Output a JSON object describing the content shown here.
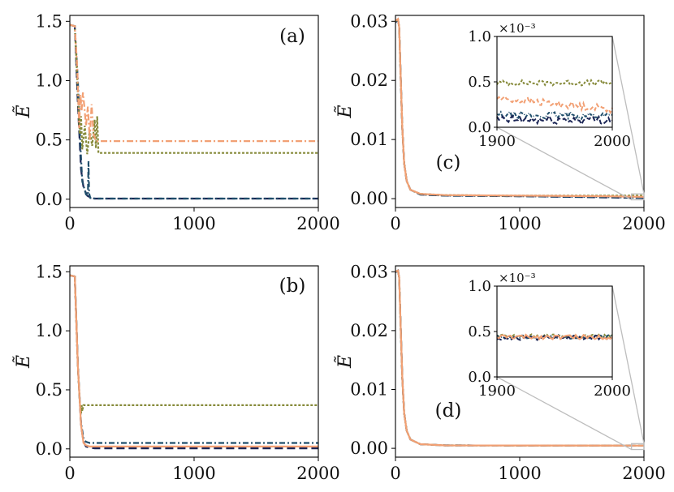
{
  "colors": {
    "navy": "#1b2555",
    "teal": "#1f4e6b",
    "olive": "#868a3a",
    "salmon": "#f2a074",
    "zoom": "#bdbdbd"
  },
  "chart_data": [
    {
      "id": "a",
      "type": "line",
      "label": "(a)",
      "ylabel": "Ẽ",
      "xlim": [
        0,
        2000
      ],
      "ylim": [
        -0.07,
        1.55
      ],
      "xticks": [
        0,
        1000,
        2000
      ],
      "xtick_labels": [
        "0",
        "1000",
        "2000"
      ],
      "yticks": [
        0,
        0.5,
        1.0,
        1.5
      ],
      "ytick_labels": [
        "0.0",
        "0.5",
        "1.0",
        "1.5"
      ],
      "series": [
        {
          "name": "navy-dashed",
          "color": "navy",
          "dash": "10,5",
          "x": [
            0,
            40,
            65,
            90,
            110,
            140,
            170,
            200,
            2000
          ],
          "y": [
            1.47,
            1.46,
            0.8,
            0.25,
            0.1,
            0.03,
            0.01,
            0.005,
            0.005
          ]
        },
        {
          "name": "teal-dashdot",
          "color": "teal",
          "dash": "7,3,2,3",
          "x": [
            0,
            40,
            65,
            85,
            100,
            130,
            145,
            150,
            155,
            165,
            200,
            300,
            2000
          ],
          "y": [
            1.47,
            1.46,
            1.0,
            0.45,
            0.15,
            0.04,
            0.03,
            0.32,
            0.05,
            0.01,
            0.005,
            0.005,
            0.005
          ]
        },
        {
          "name": "olive-dotted",
          "color": "olive",
          "dash": "3,2",
          "x": [
            0,
            40,
            60,
            80,
            90,
            100,
            120,
            140,
            160,
            180,
            200,
            210,
            220,
            230,
            250,
            2000
          ],
          "y": [
            1.47,
            1.46,
            1.0,
            0.55,
            0.7,
            0.42,
            0.62,
            0.38,
            0.58,
            0.45,
            0.67,
            0.43,
            0.7,
            0.39,
            0.39,
            0.39
          ]
        },
        {
          "name": "salmon-dashdot",
          "color": "salmon",
          "dash": "8,3,2,3",
          "x": [
            0,
            40,
            60,
            75,
            85,
            95,
            105,
            115,
            130,
            145,
            160,
            175,
            190,
            210,
            2000
          ],
          "y": [
            1.47,
            1.46,
            1.1,
            0.6,
            0.88,
            0.75,
            0.9,
            0.8,
            0.62,
            0.78,
            0.5,
            0.8,
            0.55,
            0.49,
            0.49
          ]
        }
      ]
    },
    {
      "id": "c",
      "type": "line",
      "label": "(c)",
      "ylabel": "Ẽ",
      "xlim": [
        0,
        2000
      ],
      "ylim": [
        -0.0015,
        0.031
      ],
      "xticks": [
        0,
        1000,
        2000
      ],
      "xtick_labels": [
        "0",
        "1000",
        "2000"
      ],
      "yticks": [
        0,
        0.01,
        0.02,
        0.03
      ],
      "ytick_labels": [
        "0.00",
        "0.01",
        "0.02",
        "0.03"
      ],
      "series": [
        {
          "name": "navy-dashed",
          "color": "navy",
          "dash": "10,5",
          "x": [
            0,
            20,
            30,
            40,
            55,
            70,
            90,
            120,
            200,
            400,
            1000,
            1700,
            2000
          ],
          "y": [
            0.0298,
            0.0303,
            0.029,
            0.022,
            0.012,
            0.006,
            0.003,
            0.0015,
            0.0007,
            0.0005,
            0.0004,
            0.0002,
            0.0001
          ]
        },
        {
          "name": "teal-dashdot",
          "color": "teal",
          "dash": "7,3,2,3",
          "x": [
            0,
            20,
            30,
            40,
            55,
            70,
            90,
            120,
            200,
            400,
            1000,
            1700,
            2000
          ],
          "y": [
            0.0299,
            0.0303,
            0.029,
            0.022,
            0.012,
            0.006,
            0.003,
            0.0015,
            0.0007,
            0.0005,
            0.0004,
            0.00025,
            0.00015
          ]
        },
        {
          "name": "olive-dotted",
          "color": "olive",
          "dash": "3,2",
          "x": [
            0,
            20,
            30,
            40,
            55,
            70,
            90,
            120,
            200,
            400,
            1000,
            1700,
            2000
          ],
          "y": [
            0.03,
            0.0304,
            0.029,
            0.022,
            0.012,
            0.006,
            0.003,
            0.0015,
            0.0008,
            0.0006,
            0.0005,
            0.0005,
            0.0005
          ]
        },
        {
          "name": "salmon-solid",
          "color": "salmon",
          "dash": "",
          "x": [
            0,
            20,
            30,
            40,
            55,
            70,
            90,
            120,
            200,
            400,
            1000,
            1700,
            2000
          ],
          "y": [
            0.0301,
            0.0304,
            0.029,
            0.022,
            0.012,
            0.006,
            0.003,
            0.0015,
            0.0008,
            0.0006,
            0.0005,
            0.0004,
            0.0003
          ]
        }
      ],
      "inset": {
        "xlim": [
          1900,
          2000
        ],
        "ylim": [
          0,
          1.0
        ],
        "xticks": [
          1900,
          2000
        ],
        "xtick_labels": [
          "1900",
          "2000"
        ],
        "yticks": [
          0,
          0.5,
          1.0
        ],
        "ytick_labels": [
          "0.0",
          "0.5",
          "1.0"
        ],
        "scale_label": "×10⁻³",
        "series": [
          {
            "name": "olive-dotted",
            "color": "olive",
            "dash": "3,2",
            "level": 0.49,
            "amp": 0.03
          },
          {
            "name": "salmon-solid",
            "color": "salmon",
            "dash": "5,3",
            "level": 0.32,
            "amp": 0.04,
            "slope": -0.12
          },
          {
            "name": "teal-dashdot",
            "color": "teal",
            "dash": "4,2,1,2",
            "level": 0.13,
            "amp": 0.04
          },
          {
            "name": "navy-dashed",
            "color": "navy",
            "dash": "6,3",
            "level": 0.08,
            "amp": 0.05
          }
        ]
      }
    },
    {
      "id": "b",
      "type": "line",
      "label": "(b)",
      "ylabel": "Ẽ",
      "xlim": [
        0,
        2000
      ],
      "ylim": [
        -0.07,
        1.55
      ],
      "xticks": [
        0,
        1000,
        2000
      ],
      "xtick_labels": [
        "0",
        "1000",
        "2000"
      ],
      "yticks": [
        0,
        0.5,
        1.0,
        1.5
      ],
      "ytick_labels": [
        "0.0",
        "0.5",
        "1.0",
        "1.5"
      ],
      "series": [
        {
          "name": "navy-dashed",
          "color": "navy",
          "dash": "10,5",
          "x": [
            0,
            40,
            65,
            90,
            110,
            130,
            160,
            200,
            2000
          ],
          "y": [
            1.47,
            1.46,
            0.7,
            0.2,
            0.06,
            0.02,
            0.01,
            0.005,
            0.005
          ]
        },
        {
          "name": "teal-dashdot",
          "color": "teal",
          "dash": "7,3,2,3",
          "x": [
            0,
            40,
            65,
            90,
            110,
            130,
            160,
            200,
            2000
          ],
          "y": [
            1.47,
            1.46,
            0.7,
            0.22,
            0.09,
            0.06,
            0.05,
            0.05,
            0.05
          ]
        },
        {
          "name": "olive-dotted",
          "color": "olive",
          "dash": "3,2",
          "x": [
            0,
            40,
            65,
            80,
            90,
            95,
            100,
            110,
            2000
          ],
          "y": [
            1.47,
            1.46,
            0.7,
            0.4,
            0.3,
            0.37,
            0.32,
            0.37,
            0.37
          ]
        },
        {
          "name": "salmon-solid",
          "color": "salmon",
          "dash": "",
          "x": [
            0,
            40,
            65,
            90,
            110,
            130,
            160,
            200,
            2000
          ],
          "y": [
            1.47,
            1.46,
            0.7,
            0.2,
            0.05,
            0.03,
            0.02,
            0.02,
            0.02
          ]
        }
      ]
    },
    {
      "id": "d",
      "type": "line",
      "label": "(d)",
      "ylabel": "Ẽ",
      "xlim": [
        0,
        2000
      ],
      "ylim": [
        -0.0015,
        0.031
      ],
      "xticks": [
        0,
        1000,
        2000
      ],
      "xtick_labels": [
        "0",
        "1000",
        "2000"
      ],
      "yticks": [
        0,
        0.01,
        0.02,
        0.03
      ],
      "ytick_labels": [
        "0.00",
        "0.01",
        "0.02",
        "0.03"
      ],
      "series": [
        {
          "name": "navy-dashed",
          "color": "navy",
          "dash": "10,5",
          "x": [
            0,
            20,
            30,
            40,
            55,
            70,
            90,
            120,
            200,
            400,
            2000
          ],
          "y": [
            0.0299,
            0.0302,
            0.029,
            0.022,
            0.012,
            0.006,
            0.003,
            0.0015,
            0.0007,
            0.0005,
            0.00045
          ]
        },
        {
          "name": "teal-dashdot",
          "color": "teal",
          "dash": "7,3,2,3",
          "x": [
            0,
            20,
            30,
            40,
            55,
            70,
            90,
            120,
            200,
            400,
            2000
          ],
          "y": [
            0.0299,
            0.0302,
            0.029,
            0.022,
            0.012,
            0.006,
            0.003,
            0.0015,
            0.0007,
            0.0005,
            0.00045
          ]
        },
        {
          "name": "olive-dotted",
          "color": "olive",
          "dash": "3,2",
          "x": [
            0,
            20,
            30,
            40,
            55,
            70,
            90,
            120,
            200,
            400,
            2000
          ],
          "y": [
            0.03,
            0.0302,
            0.029,
            0.022,
            0.012,
            0.006,
            0.003,
            0.0015,
            0.0007,
            0.0005,
            0.00045
          ]
        },
        {
          "name": "salmon-solid",
          "color": "salmon",
          "dash": "",
          "x": [
            0,
            20,
            30,
            40,
            55,
            70,
            90,
            120,
            200,
            400,
            2000
          ],
          "y": [
            0.03,
            0.0302,
            0.029,
            0.022,
            0.012,
            0.006,
            0.003,
            0.0015,
            0.0007,
            0.0005,
            0.00045
          ]
        }
      ],
      "inset": {
        "xlim": [
          1900,
          2000
        ],
        "ylim": [
          0,
          1.0
        ],
        "xticks": [
          1900,
          2000
        ],
        "xtick_labels": [
          "1900",
          "2000"
        ],
        "yticks": [
          0,
          0.5,
          1.0
        ],
        "ytick_labels": [
          "0.0",
          "0.5",
          "1.0"
        ],
        "scale_label": "×10⁻³",
        "series": [
          {
            "name": "olive-dotted",
            "color": "olive",
            "dash": "3,2",
            "level": 0.45,
            "amp": 0.02
          },
          {
            "name": "teal-dashdot",
            "color": "teal",
            "dash": "4,2,1,2",
            "level": 0.44,
            "amp": 0.02
          },
          {
            "name": "navy-dashed",
            "color": "navy",
            "dash": "6,3",
            "level": 0.43,
            "amp": 0.025
          },
          {
            "name": "salmon-solid",
            "color": "salmon",
            "dash": "",
            "level": 0.44,
            "amp": 0.025
          }
        ]
      }
    }
  ]
}
